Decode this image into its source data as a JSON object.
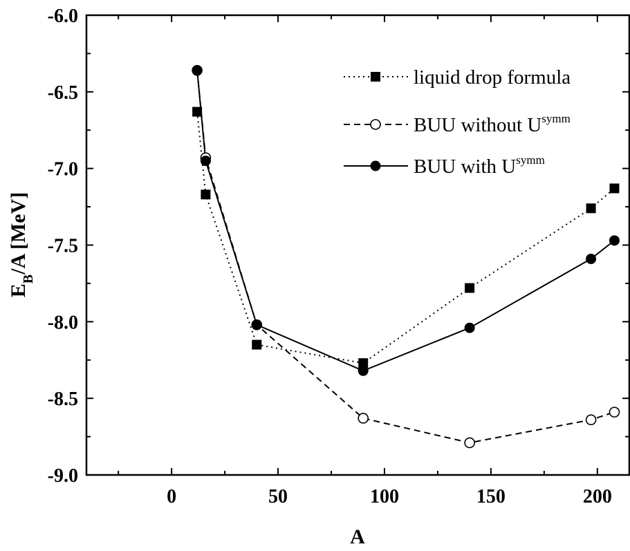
{
  "chart_data": {
    "type": "line",
    "xlabel": "A",
    "ylabel": {
      "main": "E",
      "sub": "B",
      "rest": "/A [MeV]"
    },
    "xlim": [
      -40,
      215
    ],
    "ylim": [
      -9.0,
      -6.0
    ],
    "xticks": [
      0,
      50,
      100,
      150,
      200
    ],
    "yticks": [
      -9.0,
      -8.5,
      -8.0,
      -7.5,
      -7.0,
      -6.5,
      -6.0
    ],
    "xtick_labels": [
      "0",
      "50",
      "100",
      "150",
      "200"
    ],
    "ytick_labels": [
      "-9.0",
      "-8.5",
      "-8.0",
      "-7.5",
      "-7.0",
      "-6.5",
      "-6.0"
    ],
    "legend_position": "top-right",
    "series": [
      {
        "name": "liquid drop formula",
        "legend": {
          "text": "liquid drop formula",
          "sup": ""
        },
        "line": "dotted",
        "marker": "filled-square",
        "x": [
          12,
          16,
          40,
          90,
          140,
          197,
          208
        ],
        "y": [
          -6.63,
          -7.17,
          -8.15,
          -8.27,
          -7.78,
          -7.26,
          -7.13
        ]
      },
      {
        "name": "BUU without Usymm",
        "legend": {
          "text": "BUU without U",
          "sup": "symm"
        },
        "line": "dashed",
        "marker": "open-circle",
        "x": [
          12,
          16,
          40,
          90,
          140,
          197,
          208
        ],
        "y": [
          -6.36,
          -6.93,
          -8.02,
          -8.63,
          -8.79,
          -8.64,
          -8.59
        ]
      },
      {
        "name": "BUU with Usymm",
        "legend": {
          "text": "BUU with U",
          "sup": "symm"
        },
        "line": "solid",
        "marker": "filled-circle",
        "x": [
          12,
          16,
          40,
          90,
          140,
          197,
          208
        ],
        "y": [
          -6.36,
          -6.95,
          -8.02,
          -8.32,
          -8.04,
          -7.59,
          -7.47
        ]
      }
    ]
  }
}
